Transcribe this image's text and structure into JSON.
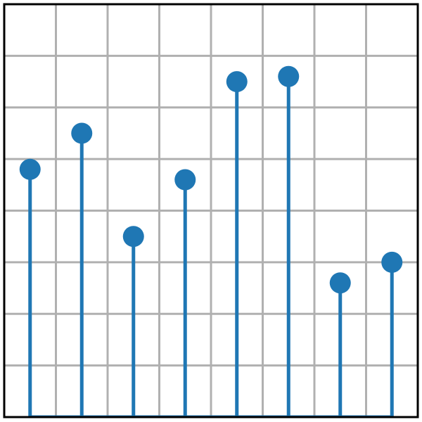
{
  "chart_data": {
    "type": "stem",
    "x": [
      0,
      1,
      2,
      3,
      4,
      5,
      6,
      7
    ],
    "values": [
      4.8,
      5.5,
      3.5,
      4.6,
      6.5,
      6.6,
      2.6,
      3.0
    ],
    "xlim": [
      -0.5,
      7.5
    ],
    "ylim": [
      0,
      8
    ],
    "grid": true,
    "xgrid": [
      0.5,
      1.5,
      2.5,
      3.5,
      4.5,
      5.5,
      6.5
    ],
    "ygrid": [
      1,
      2,
      3,
      4,
      5,
      6,
      7
    ],
    "title": "",
    "xlabel": "",
    "ylabel": "",
    "colors": {
      "series": "#1f77b4",
      "grid": "#b0b0b0",
      "frame": "#000000",
      "background": "#ffffff"
    }
  }
}
